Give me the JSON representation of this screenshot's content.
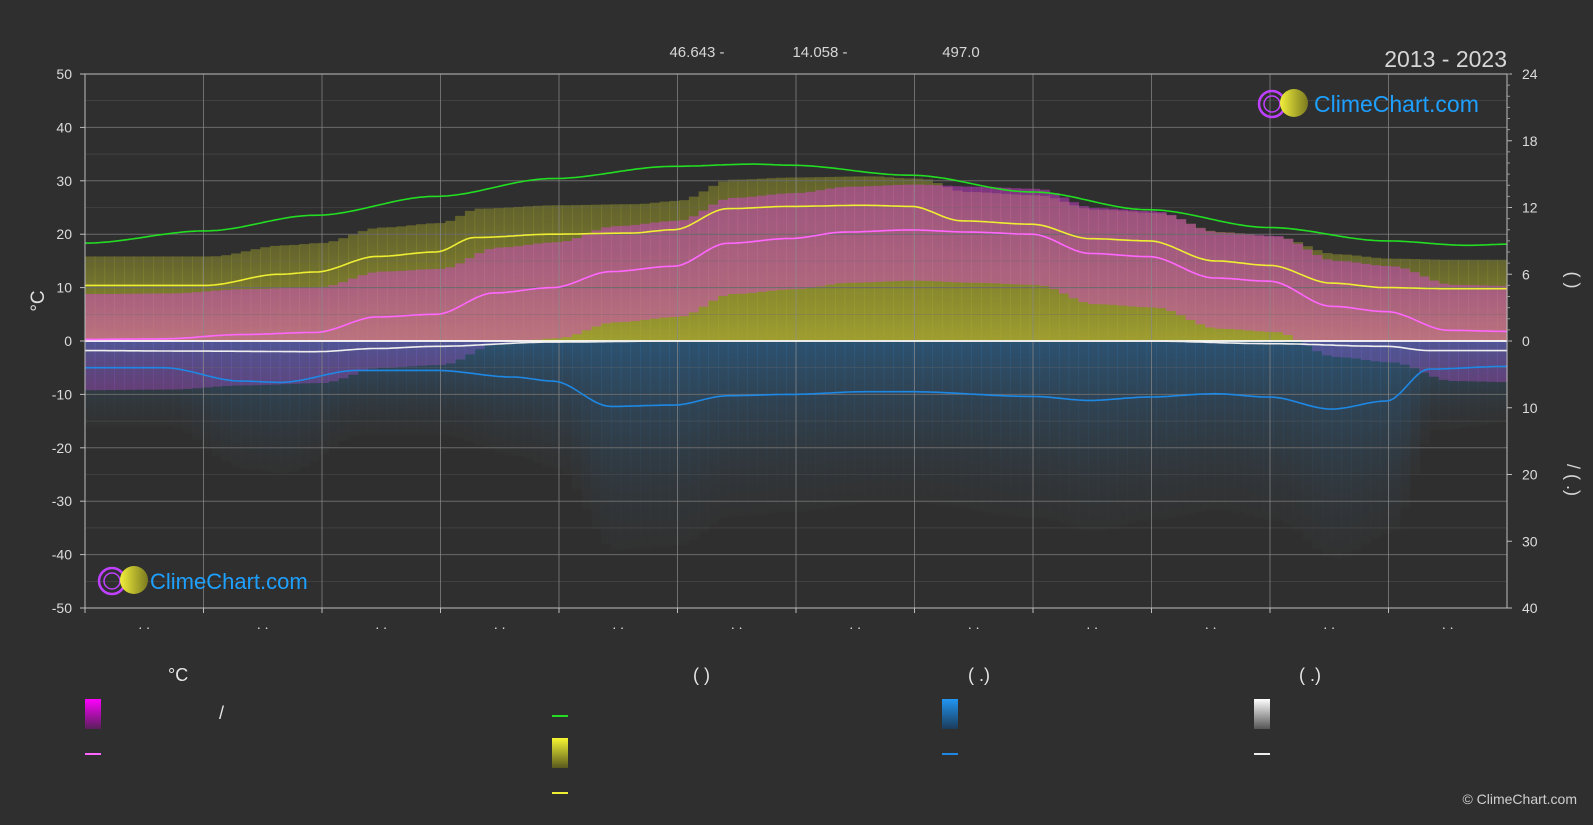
{
  "header": {
    "coords": [
      "46.643 -",
      "14.058 -",
      "497.0"
    ],
    "years": "2013 - 2023"
  },
  "logo_text": "ClimeChart.com",
  "copyright": "© ClimeChart.com",
  "colors": {
    "background": "#2f2f2f",
    "grid": "#6a6a6a",
    "daylight": "#22dd22",
    "sunshine": "#eeee33",
    "temp_mean": "#ff66ff",
    "temp_band": "#e040e0",
    "sunshine_band": "#b8b830",
    "precip": "#1e88e5",
    "snow": "#eeeeee",
    "logo_text": "#1ea0ff"
  },
  "chart_data": {
    "type": "line",
    "left_axis": {
      "label": "°C",
      "ylim": [
        -50,
        50
      ],
      "ticks": [
        "50",
        "40",
        "30",
        "20",
        "10",
        "0",
        "-10",
        "-20",
        "-30",
        "-40",
        "-50"
      ]
    },
    "right_axis_hours": {
      "ylim": [
        0,
        24
      ],
      "ticks": [
        "24",
        "18",
        "12",
        "6",
        "0"
      ]
    },
    "right_axis_precip": {
      "ylim": [
        0,
        40
      ],
      "ticks": [
        "10",
        "20",
        "30",
        "40"
      ],
      "inverted": true
    },
    "x": {
      "range": [
        0,
        365
      ],
      "month_tick_labels": [
        ". .",
        ". .",
        ". .",
        ". .",
        ". .",
        ". .",
        ". .",
        ". .",
        ". .",
        ". .",
        ". .",
        ". ."
      ]
    },
    "series": [
      {
        "key": "daylight",
        "axis": "hours",
        "points": [
          [
            0,
            8.8
          ],
          [
            31,
            9.9
          ],
          [
            59,
            11.3
          ],
          [
            90,
            13.0
          ],
          [
            120,
            14.6
          ],
          [
            151,
            15.7
          ],
          [
            172,
            15.9
          ],
          [
            181,
            15.8
          ],
          [
            212,
            14.9
          ],
          [
            243,
            13.4
          ],
          [
            273,
            11.8
          ],
          [
            304,
            10.2
          ],
          [
            334,
            9.0
          ],
          [
            355,
            8.6
          ],
          [
            365,
            8.7
          ]
        ]
      },
      {
        "key": "sunshine",
        "axis": "hours",
        "points": [
          [
            0,
            5.0
          ],
          [
            15,
            5.0
          ],
          [
            31,
            5.0
          ],
          [
            50,
            6.0
          ],
          [
            59,
            6.2
          ],
          [
            75,
            7.6
          ],
          [
            90,
            8.0
          ],
          [
            100,
            9.3
          ],
          [
            120,
            9.6
          ],
          [
            140,
            9.7
          ],
          [
            151,
            10.0
          ],
          [
            165,
            11.9
          ],
          [
            181,
            12.1
          ],
          [
            200,
            12.2
          ],
          [
            212,
            12.1
          ],
          [
            225,
            10.8
          ],
          [
            243,
            10.5
          ],
          [
            258,
            9.2
          ],
          [
            273,
            9.0
          ],
          [
            290,
            7.2
          ],
          [
            304,
            6.8
          ],
          [
            320,
            5.2
          ],
          [
            334,
            4.8
          ],
          [
            350,
            4.7
          ],
          [
            365,
            4.7
          ]
        ]
      },
      {
        "key": "temp_mean",
        "axis": "temp",
        "points": [
          [
            0,
            0.3
          ],
          [
            20,
            0.4
          ],
          [
            40,
            1.2
          ],
          [
            59,
            1.6
          ],
          [
            75,
            4.5
          ],
          [
            90,
            5.0
          ],
          [
            105,
            9.0
          ],
          [
            120,
            10.0
          ],
          [
            135,
            13.0
          ],
          [
            151,
            14.0
          ],
          [
            165,
            18.3
          ],
          [
            181,
            19.2
          ],
          [
            195,
            20.4
          ],
          [
            212,
            20.8
          ],
          [
            227,
            20.4
          ],
          [
            243,
            20.0
          ],
          [
            258,
            16.4
          ],
          [
            273,
            15.8
          ],
          [
            290,
            11.8
          ],
          [
            304,
            11.2
          ],
          [
            320,
            6.5
          ],
          [
            334,
            5.5
          ],
          [
            350,
            2.0
          ],
          [
            365,
            1.8
          ]
        ]
      },
      {
        "key": "snow",
        "axis": "temp",
        "points": [
          [
            0,
            -1.8
          ],
          [
            31,
            -1.9
          ],
          [
            59,
            -2.0
          ],
          [
            75,
            -1.4
          ],
          [
            90,
            -1.0
          ],
          [
            120,
            -0.2
          ],
          [
            151,
            0.0
          ],
          [
            273,
            0.0
          ],
          [
            304,
            -0.5
          ],
          [
            334,
            -1.0
          ],
          [
            345,
            -1.8
          ],
          [
            365,
            -1.8
          ]
        ]
      },
      {
        "key": "precip",
        "axis": "precip",
        "points": [
          [
            0,
            4.0
          ],
          [
            20,
            4.0
          ],
          [
            40,
            6.0
          ],
          [
            50,
            6.2
          ],
          [
            70,
            4.4
          ],
          [
            90,
            4.4
          ],
          [
            110,
            5.4
          ],
          [
            120,
            6.0
          ],
          [
            135,
            9.8
          ],
          [
            151,
            9.6
          ],
          [
            165,
            8.2
          ],
          [
            181,
            8.0
          ],
          [
            200,
            7.6
          ],
          [
            212,
            7.6
          ],
          [
            243,
            8.3
          ],
          [
            258,
            8.9
          ],
          [
            273,
            8.4
          ],
          [
            290,
            7.9
          ],
          [
            304,
            8.4
          ],
          [
            320,
            10.2
          ],
          [
            334,
            9.0
          ],
          [
            345,
            4.2
          ],
          [
            365,
            3.8
          ]
        ]
      }
    ]
  },
  "legend": {
    "columns": [
      {
        "heading": "°C",
        "items": [
          {
            "swatch": "temp-gradient",
            "text": "/"
          },
          {
            "swatch": "temp-line",
            "text": ""
          }
        ]
      },
      {
        "heading": "(          )",
        "items": [
          {
            "swatch": "daylight-line",
            "text": ""
          },
          {
            "swatch": "sunshine-gradient",
            "text": ""
          },
          {
            "swatch": "sunshine-line",
            "text": ""
          }
        ]
      },
      {
        "heading": "(   .)",
        "items": [
          {
            "swatch": "precip-gradient",
            "text": ""
          },
          {
            "swatch": "precip-line",
            "text": ""
          }
        ]
      },
      {
        "heading": "(   .)",
        "items": [
          {
            "swatch": "snow-gradient",
            "text": ""
          },
          {
            "swatch": "snow-line",
            "text": ""
          }
        ]
      }
    ]
  },
  "right_axis_titles": {
    "upper": "(    )",
    "lower": "/ (  .)"
  }
}
